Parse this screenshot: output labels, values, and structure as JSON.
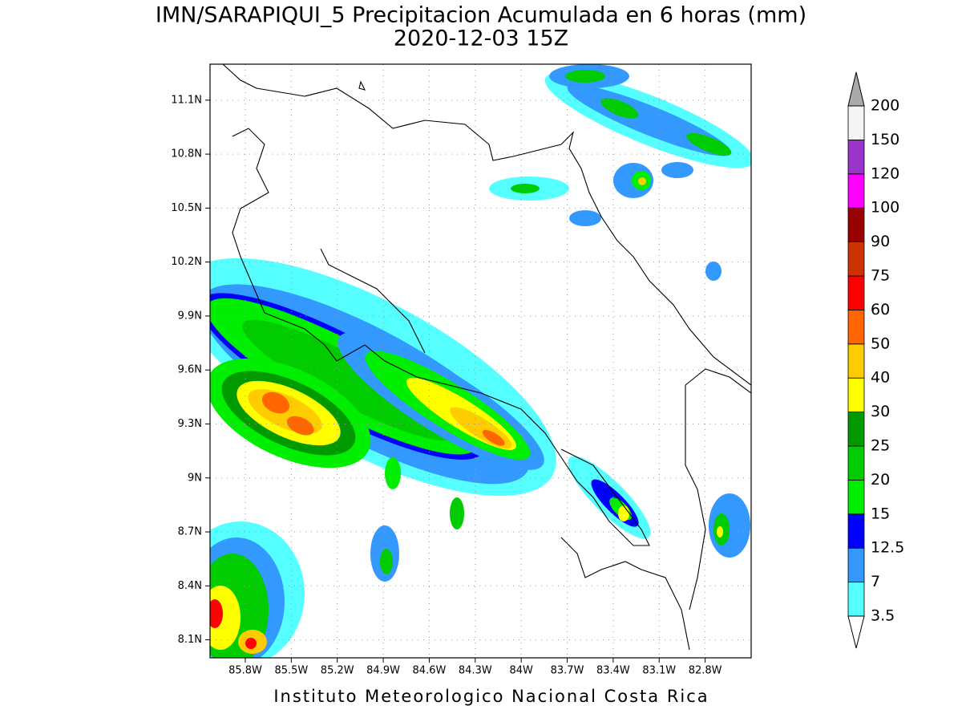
{
  "title": "IMN/SARAPIQUI_5 Precipitacion Acumulada en 6 horas (mm)",
  "subtitle": "2020-12-03 15Z",
  "map": {
    "xlim": [
      -86.03,
      -82.5
    ],
    "ylim": [
      8.0,
      11.3
    ],
    "xticks": [
      {
        "value": -85.8,
        "label": "85.8W"
      },
      {
        "value": -85.5,
        "label": "85.5W"
      },
      {
        "value": -85.2,
        "label": "85.2W"
      },
      {
        "value": -84.9,
        "label": "84.9W"
      },
      {
        "value": -84.6,
        "label": "84.6W"
      },
      {
        "value": -84.3,
        "label": "84.3W"
      },
      {
        "value": -84.0,
        "label": "84W"
      },
      {
        "value": -83.7,
        "label": "83.7W"
      },
      {
        "value": -83.4,
        "label": "83.4W"
      },
      {
        "value": -83.1,
        "label": "83.1W"
      },
      {
        "value": -82.8,
        "label": "82.8W"
      }
    ],
    "yticks": [
      {
        "value": 11.1,
        "label": "11.1N"
      },
      {
        "value": 10.8,
        "label": "10.8N"
      },
      {
        "value": 10.5,
        "label": "10.5N"
      },
      {
        "value": 10.2,
        "label": "10.2N"
      },
      {
        "value": 9.9,
        "label": "9.9N"
      },
      {
        "value": 9.6,
        "label": "9.6N"
      },
      {
        "value": 9.3,
        "label": "9.3N"
      },
      {
        "value": 9.0,
        "label": "9N"
      },
      {
        "value": 8.7,
        "label": "8.7N"
      },
      {
        "value": 8.4,
        "label": "8.4N"
      },
      {
        "value": 8.1,
        "label": "8.1N"
      }
    ],
    "grid": true
  },
  "colorbar": {
    "levels": [
      3.5,
      7,
      12.5,
      15,
      20,
      25,
      30,
      40,
      50,
      60,
      75,
      90,
      100,
      120,
      150,
      200
    ],
    "colors": [
      "#55ffff",
      "#3399ff",
      "#0000ff",
      "#00ee00",
      "#00cc00",
      "#009900",
      "#ffff00",
      "#ffcc00",
      "#ff6600",
      "#ff0000",
      "#cc3300",
      "#990000",
      "#ff00ff",
      "#9933cc",
      "#f5f5f5"
    ],
    "under_color": "#ffffff",
    "over_color": "#aaaaaa"
  },
  "footer": "Instituto Meteorologico Nacional Costa Rica"
}
